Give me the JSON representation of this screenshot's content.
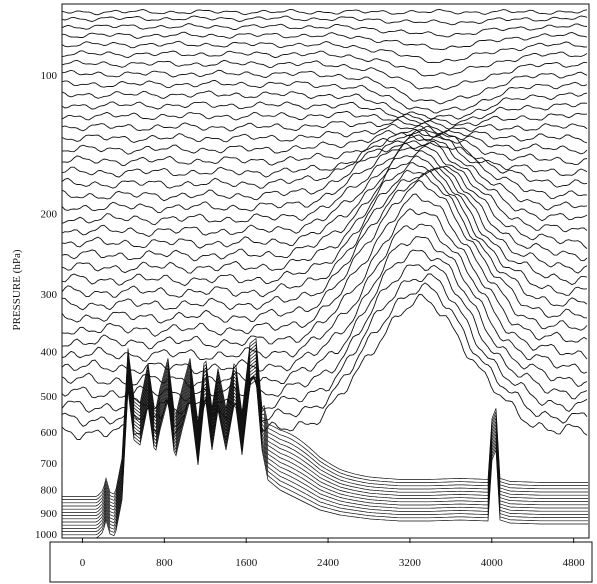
{
  "chart_data": {
    "type": "line",
    "title": "",
    "xlabel": "",
    "ylabel": "PRESSURE (hPa)",
    "x_ticks": [
      "0",
      "800",
      "1600",
      "2400",
      "3200",
      "4000",
      "4800"
    ],
    "x_tick_values": [
      0,
      800,
      1600,
      2400,
      3200,
      4000,
      4800
    ],
    "y_ticks": [
      "100",
      "200",
      "300",
      "400",
      "500",
      "600",
      "700",
      "800",
      "900",
      "1000"
    ],
    "y_tick_values": [
      100,
      200,
      300,
      400,
      500,
      600,
      700,
      800,
      900,
      1000
    ],
    "xlim": [
      -200,
      4950
    ],
    "ylim": [
      1020,
      70
    ],
    "y_scale": "log",
    "grid": false,
    "legend": "none",
    "series_count_upper": 38,
    "series_count_lower": 14,
    "line_color": "#111111"
  }
}
